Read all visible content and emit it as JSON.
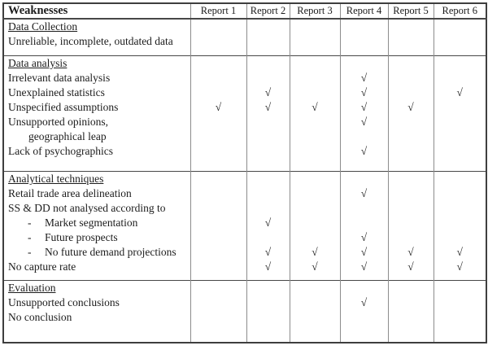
{
  "table": {
    "check_symbol": "√",
    "bullet_char": "-",
    "header": {
      "weaknesses": "Weaknesses",
      "reports": [
        "Report 1",
        "Report 2",
        "Report 3",
        "Report 4",
        "Report 5",
        "Report 6"
      ]
    },
    "sections": [
      {
        "title": "Data Collection",
        "spacer": 8,
        "rows": [
          {
            "label": "Unreliable, incomplete, outdated data",
            "style": "plain",
            "marks": [
              0,
              0,
              0,
              0,
              0,
              0
            ]
          }
        ]
      },
      {
        "title": "Data analysis",
        "spacer": 15,
        "rows": [
          {
            "label": "Irrelevant data analysis",
            "style": "plain",
            "marks": [
              0,
              0,
              0,
              1,
              0,
              0
            ]
          },
          {
            "label": "Unexplained statistics",
            "style": "plain",
            "marks": [
              0,
              1,
              0,
              1,
              0,
              1
            ]
          },
          {
            "label": "Unspecified assumptions",
            "style": "plain",
            "marks": [
              1,
              1,
              1,
              1,
              1,
              0
            ]
          },
          {
            "label": "Unsupported opinions,",
            "style": "plain",
            "marks": [
              0,
              0,
              0,
              1,
              0,
              0
            ]
          },
          {
            "label": "geographical leap",
            "style": "indent",
            "marks": [
              0,
              0,
              0,
              0,
              0,
              0
            ]
          },
          {
            "label": "Lack of psychographics",
            "style": "plain",
            "marks": [
              0,
              0,
              0,
              1,
              0,
              0
            ]
          }
        ]
      },
      {
        "title": "Analytical techniques",
        "spacer": 7,
        "rows": [
          {
            "label": "Retail trade area delineation",
            "style": "plain",
            "marks": [
              0,
              0,
              0,
              1,
              0,
              0
            ]
          },
          {
            "label": "SS & DD not analysed according to",
            "style": "plain",
            "marks": [
              0,
              0,
              0,
              0,
              0,
              0
            ]
          },
          {
            "label": "Market segmentation",
            "style": "bullet",
            "marks": [
              0,
              1,
              0,
              0,
              0,
              0
            ]
          },
          {
            "label": "Future prospects",
            "style": "bullet",
            "marks": [
              0,
              0,
              0,
              1,
              0,
              0
            ]
          },
          {
            "label": "No future demand projections",
            "style": "bullet",
            "marks": [
              0,
              1,
              1,
              1,
              1,
              1
            ]
          },
          {
            "label": "No capture rate",
            "style": "plain",
            "marks": [
              0,
              1,
              1,
              1,
              1,
              1
            ]
          }
        ]
      },
      {
        "title": "Evaluation",
        "spacer": 21,
        "rows": [
          {
            "label": "Unsupported conclusions",
            "style": "plain",
            "marks": [
              0,
              0,
              0,
              1,
              0,
              0
            ]
          },
          {
            "label": "No conclusion",
            "style": "plain",
            "marks": [
              0,
              0,
              0,
              0,
              0,
              0
            ]
          }
        ]
      }
    ]
  }
}
